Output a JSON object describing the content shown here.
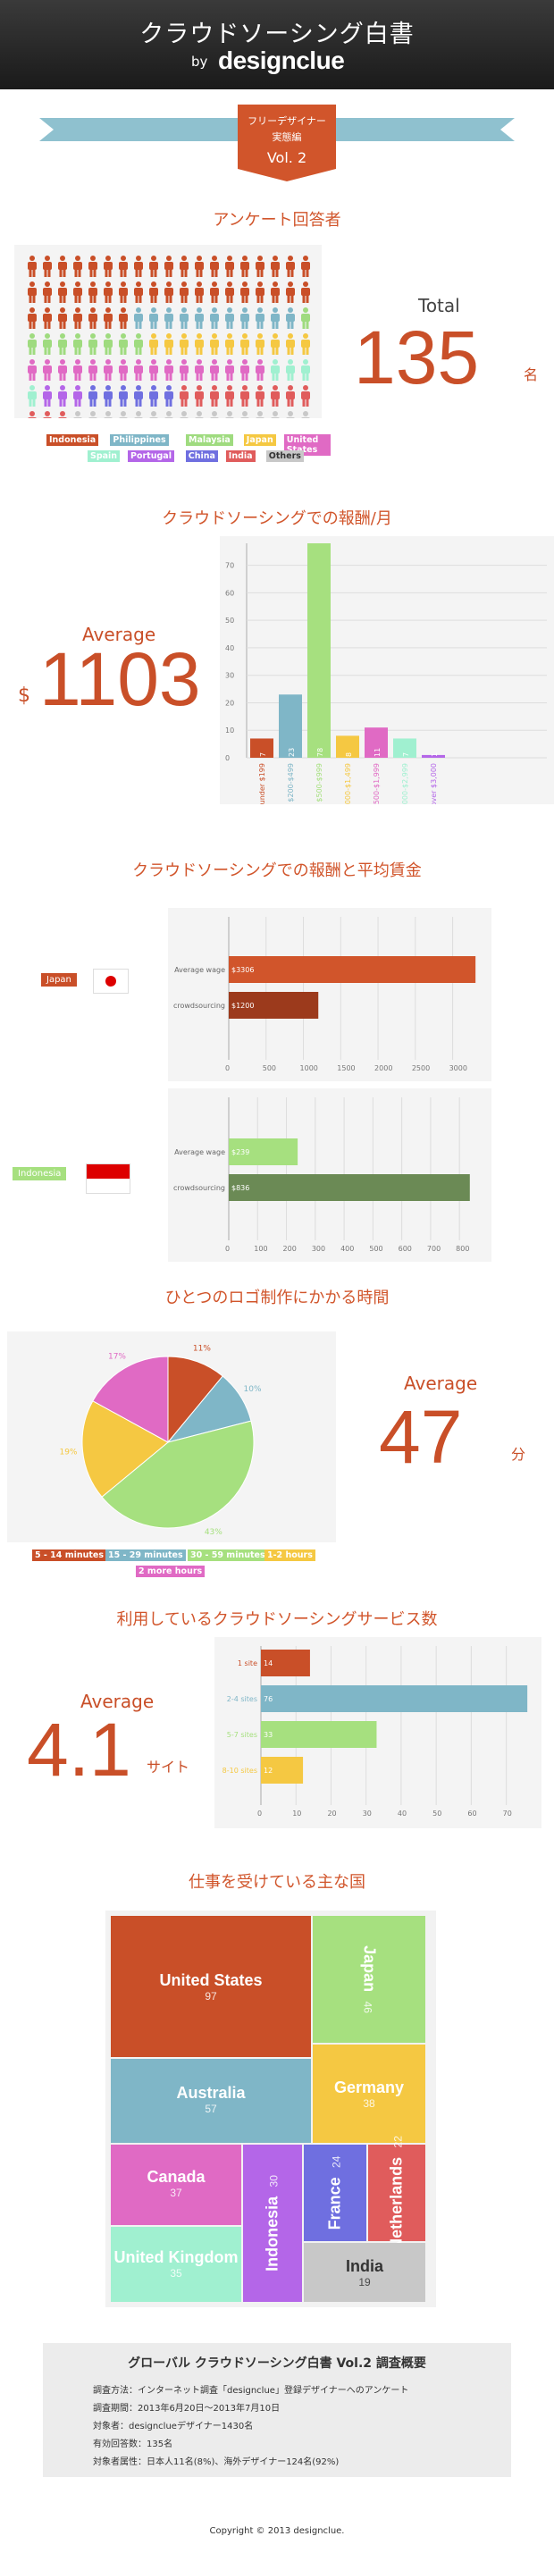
{
  "header": {
    "title": "クラウドソーシング白書",
    "by": "by",
    "brand": "designclue"
  },
  "badge": {
    "line1": "フリーデザイナー",
    "line2": "実態編",
    "vol": "Vol. 2"
  },
  "respondents": {
    "title": "アンケート回答者",
    "total_label": "Total",
    "total": "135",
    "unit": "名",
    "people_counts": [
      {
        "country": "Indonesia",
        "count": 45,
        "color": "#c94f28"
      },
      {
        "country": "Philippines",
        "count": 11,
        "color": "#7fb6c7"
      },
      {
        "country": "Malaysia",
        "count": 9,
        "color": "#9fdb7f"
      },
      {
        "country": "Japan",
        "count": 11,
        "color": "#f5c842"
      },
      {
        "country": "United States",
        "count": 16,
        "color": "#e06ac4"
      },
      {
        "country": "Spain",
        "count": 4,
        "color": "#a0f0d0"
      },
      {
        "country": "Portugal",
        "count": 3,
        "color": "#b466e8"
      },
      {
        "country": "China",
        "count": 6,
        "color": "#6f6fe0"
      },
      {
        "country": "India",
        "count": 12,
        "color": "#e05c5c"
      },
      {
        "country": "Others",
        "count": 18,
        "color": "#c8c8c8"
      }
    ],
    "legend_row1": [
      "Indonesia",
      "Philippines",
      "Malaysia",
      "Japan",
      "United States"
    ],
    "legend_row2": [
      "Spain",
      "Portugal",
      "China",
      "India",
      "Others"
    ]
  },
  "monthly": {
    "title": "クラウドソーシングでの報酬/月",
    "avg_label": "Average",
    "currency": "$",
    "avg": "1103"
  },
  "wages": {
    "title": "クラウドソーシングでの報酬と平均賃金",
    "japan_label": "Japan",
    "indonesia_label": "Indonesia"
  },
  "logo_time": {
    "title": "ひとつのロゴ制作にかかる時間",
    "avg_label": "Average",
    "avg": "47",
    "unit": "分",
    "legend": [
      "5 - 14 minutes",
      "15 - 29 minutes",
      "30 - 59 minutes",
      "1-2 hours",
      "2 more hours"
    ]
  },
  "services": {
    "title": "利用しているクラウドソーシングサービス数",
    "avg_label": "Average",
    "avg": "4.1",
    "unit": "サイト"
  },
  "countries": {
    "title": "仕事を受けている主な国",
    "items": [
      {
        "name": "United States",
        "value": "97"
      },
      {
        "name": "Japan",
        "value": "46"
      },
      {
        "name": "Australia",
        "value": "57"
      },
      {
        "name": "Germany",
        "value": "38"
      },
      {
        "name": "Canada",
        "value": "37"
      },
      {
        "name": "Indonesia",
        "value": "30"
      },
      {
        "name": "France",
        "value": "24"
      },
      {
        "name": "Netherlands",
        "value": "22"
      },
      {
        "name": "United Kingdom",
        "value": "35"
      },
      {
        "name": "India",
        "value": "19"
      }
    ]
  },
  "summary": {
    "title": "グローバル クラウドソーシング白書 Vol.2 調査概要",
    "lines": [
      "調査方法：インターネット調査「designclue」登録デザイナーへのアンケート",
      "調査期間：2013年6月20日〜2013年7月10日",
      "対象者：designclueデザイナー1430名",
      "有効回答数：135名",
      "対象者属性：日本人11名(8%)、海外デザイナー124名(92%)"
    ]
  },
  "footer": "Copyright © 2013 designclue.",
  "chart_data": [
    {
      "type": "bar",
      "title": "クラウドソーシングでの報酬/月",
      "categories": [
        "under $199",
        "$200-$499",
        "$500-$999",
        "$1,000-$1,499",
        "$1,500-$1,999",
        "$2,000-$2,999",
        "over $3,000"
      ],
      "values": [
        7,
        23,
        78,
        8,
        11,
        7,
        1
      ],
      "colors": [
        "#c94f28",
        "#7fb6c7",
        "#a6e07f",
        "#f5c842",
        "#e06ac4",
        "#a0f0d0",
        "#b466e8"
      ],
      "yticks": [
        0,
        10,
        20,
        30,
        40,
        50,
        60,
        70
      ],
      "ylim": [
        0,
        78
      ]
    },
    {
      "type": "bar",
      "orientation": "horizontal",
      "title": "Japan",
      "categories": [
        "Average wage",
        "crowdsourcing"
      ],
      "values": [
        3306,
        1200
      ],
      "labels": [
        "$3306",
        "$1200"
      ],
      "colors": [
        "#d1552b",
        "#9c3a1c"
      ],
      "xticks": [
        0,
        500,
        1000,
        1500,
        2000,
        2500,
        3000
      ],
      "xlim": [
        0,
        3400
      ]
    },
    {
      "type": "bar",
      "orientation": "horizontal",
      "title": "Indonesia",
      "categories": [
        "Average wage",
        "crowdsourcing"
      ],
      "values": [
        239,
        836
      ],
      "labels": [
        "$239",
        "$836"
      ],
      "colors": [
        "#a6e07f",
        "#6b8a55"
      ],
      "xticks": [
        0,
        100,
        200,
        300,
        400,
        500,
        600,
        700,
        800
      ],
      "xlim": [
        0,
        880
      ]
    },
    {
      "type": "pie",
      "title": "ひとつのロゴ制作にかかる時間",
      "categories": [
        "5 - 14 minutes",
        "15 - 29 minutes",
        "30 - 59 minutes",
        "1-2 hours",
        "2 more hours"
      ],
      "values": [
        11,
        10,
        43,
        19,
        17
      ],
      "labels": [
        "11%",
        "10%",
        "43%",
        "19%",
        "17%"
      ],
      "colors": [
        "#c94f28",
        "#7fb6c7",
        "#a6e07f",
        "#f5c842",
        "#e06ac4"
      ]
    },
    {
      "type": "bar",
      "orientation": "horizontal",
      "title": "利用しているクラウドソーシングサービス数",
      "categories": [
        "1 site",
        "2-4 sites",
        "5-7 sites",
        "8-10 sites"
      ],
      "values": [
        14,
        76,
        33,
        12
      ],
      "colors": [
        "#c94f28",
        "#7fb6c7",
        "#a6e07f",
        "#f5c842"
      ],
      "xticks": [
        0,
        10,
        20,
        30,
        40,
        50,
        60,
        70
      ],
      "xlim": [
        0,
        78
      ]
    }
  ]
}
